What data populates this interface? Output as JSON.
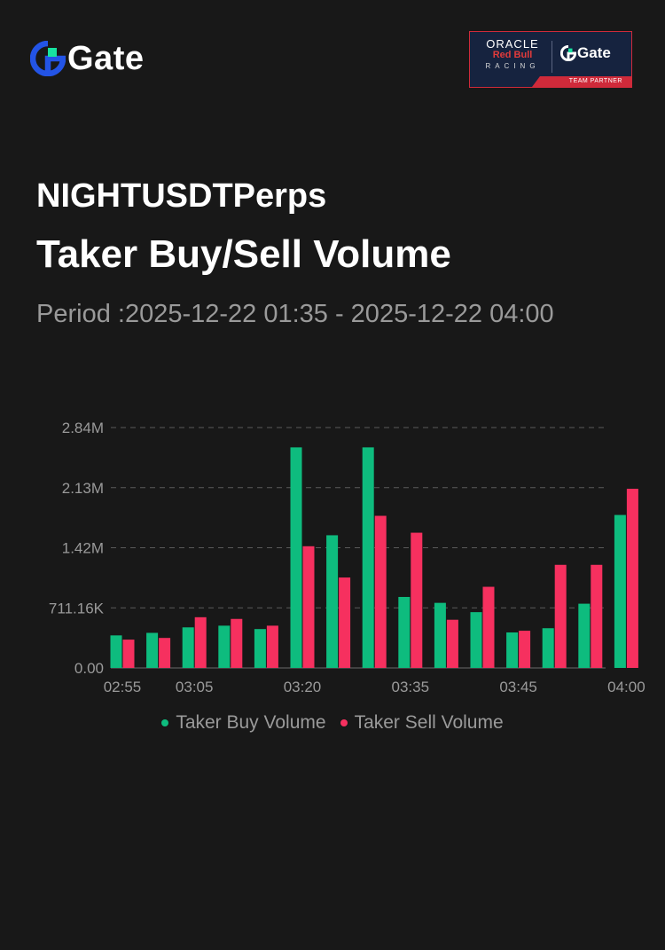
{
  "brand": {
    "name": "Gate",
    "accent": "#2354e6",
    "accent_secondary": "#17e3a1"
  },
  "partner_badge": {
    "oracle": "ORACLE",
    "red_bull": "Red Bull",
    "racing": "RACING",
    "gate": "Gate",
    "team_partner": "TEAM PARTNER"
  },
  "header": {
    "symbol": "NIGHTUSDTPerps",
    "title": "Taker Buy/Sell Volume",
    "period": "Period :2025-12-22 01:35 - 2025-12-22 04:00"
  },
  "chart_data": {
    "type": "bar",
    "x_tick_labels": [
      "02:55",
      "03:05",
      "03:20",
      "03:35",
      "03:45",
      "04:00"
    ],
    "x_tick_indices": [
      0,
      2,
      5,
      8,
      11,
      14
    ],
    "y_tick_labels": [
      "0.00",
      "711.16K",
      "1.42M",
      "2.13M",
      "2.84M"
    ],
    "y_tick_values": [
      0,
      711160,
      1422320,
      2133480,
      2844640
    ],
    "ylim": [
      0,
      2844640
    ],
    "grid": true,
    "legend_placement": "bottom",
    "categories_count": 15,
    "series": [
      {
        "name": "Taker Buy Volume",
        "color": "#0ebc7e",
        "values": [
          385000,
          415000,
          480000,
          500000,
          460000,
          2610000,
          1570000,
          2610000,
          840000,
          770000,
          660000,
          420000,
          470000,
          760000,
          1810000
        ]
      },
      {
        "name": "Taker Sell Volume",
        "color": "#f6305f",
        "values": [
          335000,
          355000,
          600000,
          580000,
          500000,
          1440000,
          1070000,
          1800000,
          1600000,
          570000,
          960000,
          440000,
          1220000,
          1220000,
          2120000
        ]
      }
    ]
  }
}
